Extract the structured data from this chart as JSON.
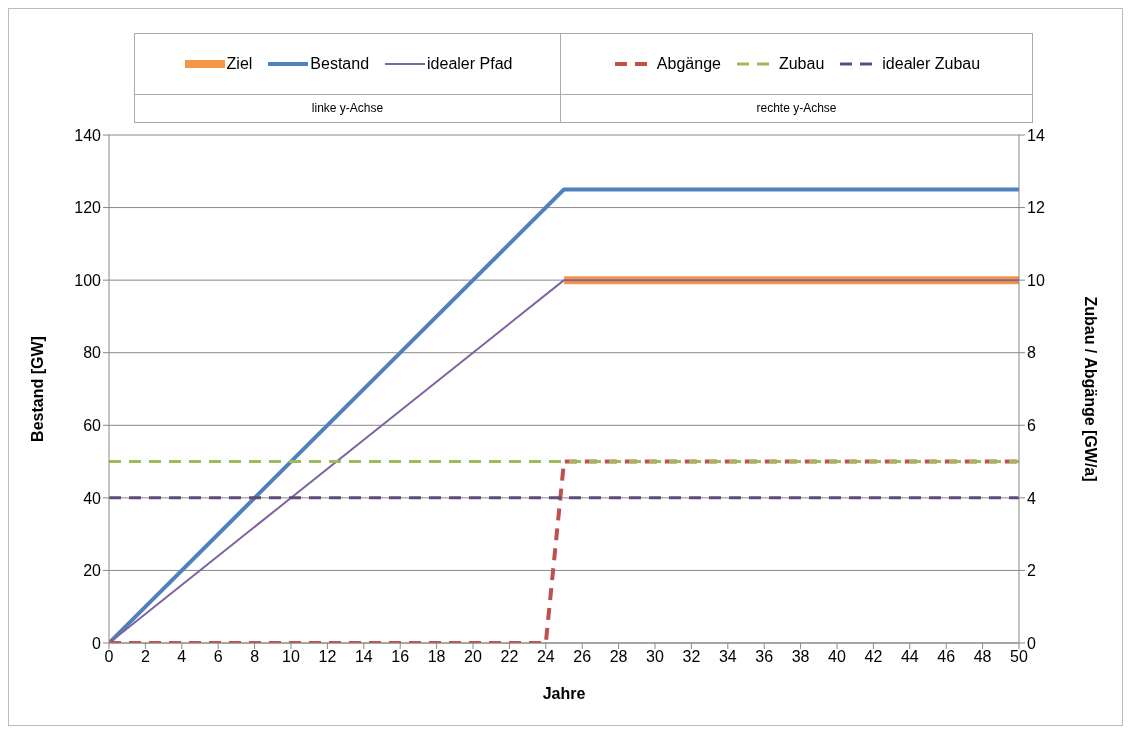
{
  "chart_data": {
    "type": "line",
    "xlabel": "Jahre",
    "ylabel": "Bestand [GW]",
    "y2label": "Zubau / Abgänge [GW/a]",
    "annotations": [
      "linke y-Achse",
      "rechte y-Achse"
    ],
    "xlim": [
      0,
      50
    ],
    "xticks": [
      0,
      2,
      4,
      6,
      8,
      10,
      12,
      14,
      16,
      18,
      20,
      22,
      24,
      26,
      28,
      30,
      32,
      34,
      36,
      38,
      40,
      42,
      44,
      46,
      48,
      50
    ],
    "ylim": [
      0,
      140
    ],
    "yticks": [
      0,
      20,
      40,
      60,
      80,
      100,
      120,
      140
    ],
    "y2lim": [
      0,
      14
    ],
    "y2ticks": [
      0,
      2,
      4,
      6,
      8,
      10,
      12,
      14
    ],
    "grid": "y",
    "legend": "top",
    "marker": "none",
    "series": [
      {
        "name": "Ziel",
        "color": "#f79646",
        "x": [
          25,
          50
        ],
        "values": [
          100,
          100
        ],
        "line_style": "solid"
      },
      {
        "name": "Bestand",
        "color": "#4f81bd",
        "x": [
          0,
          25,
          50
        ],
        "values": [
          0,
          125,
          125
        ],
        "line_style": "solid"
      },
      {
        "name": "idealer Pfad",
        "color": "#8064a2",
        "x": [
          0,
          25,
          50
        ],
        "values": [
          0,
          100,
          100
        ],
        "line_style": "solid"
      },
      {
        "name": "Abgänge",
        "color": "#c0504d",
        "x": [
          0,
          24,
          25,
          50
        ],
        "values": [
          0,
          0,
          5,
          5
        ],
        "axis": "y2",
        "line_style": "dashed"
      },
      {
        "name": "Zubau",
        "color": "#9bbb59",
        "x": [
          0,
          50
        ],
        "values": [
          5,
          5
        ],
        "axis": "y2",
        "line_style": "dashed"
      },
      {
        "name": "idealer Zubau",
        "color": "#604a7b",
        "x": [
          0,
          50
        ],
        "values": [
          4,
          4
        ],
        "axis": "y2",
        "line_style": "dashed"
      }
    ]
  }
}
